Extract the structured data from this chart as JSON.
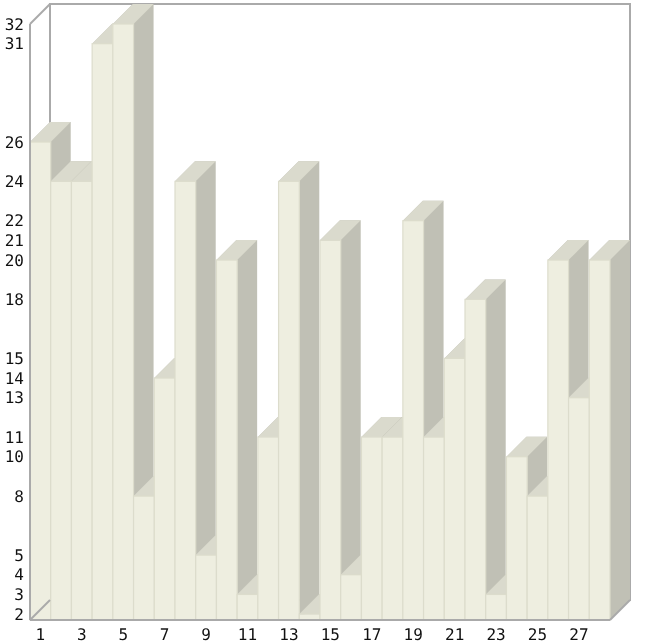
{
  "chart_data": {
    "type": "bar",
    "categories": [
      "1",
      null,
      "3",
      null,
      "5",
      null,
      "7",
      null,
      "9",
      null,
      "11",
      null,
      "13",
      null,
      "15",
      null,
      "17",
      null,
      "19",
      null,
      "21",
      null,
      "23",
      null,
      "25",
      null,
      "27",
      null
    ],
    "values": [
      26,
      24,
      24,
      31,
      32,
      8,
      14,
      24,
      5,
      20,
      3,
      11,
      24,
      2,
      21,
      4,
      11,
      11,
      22,
      11,
      15,
      18,
      3,
      10,
      8,
      20,
      13,
      20
    ],
    "color": "#eeeee0",
    "ylim": [
      1.7,
      32
    ],
    "yticks": [
      2,
      3,
      4,
      5,
      8,
      10,
      11,
      13,
      14,
      15,
      18,
      20,
      21,
      22,
      24,
      26,
      31,
      32
    ],
    "grid": false
  }
}
